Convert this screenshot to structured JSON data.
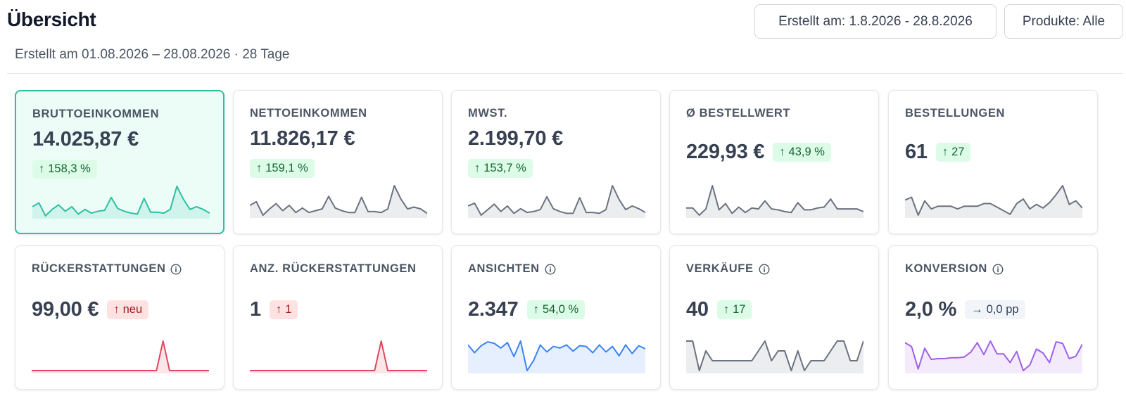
{
  "header": {
    "title": "Übersicht",
    "subtitle": "Erstellt am 01.08.2026 – 28.08.2026 · 28 Tage",
    "date_filter_label": "Erstellt am: 1.8.2026 - 28.8.2026",
    "products_filter_label": "Produkte: Alle"
  },
  "colors": {
    "teal": "#2dbfa3",
    "slate": "#6b7280",
    "red": "#e0485e",
    "blue": "#3b82f6",
    "purple": "#9f5fe8"
  },
  "cards": [
    {
      "label": "BRUTTOEINKOMMEN",
      "value": "14.025,87 €",
      "delta": "158,3 %",
      "delta_type": "up",
      "arrow": "↑",
      "info": false,
      "color": "teal",
      "selected": true,
      "series": [
        18,
        22,
        8,
        15,
        20,
        13,
        18,
        10,
        15,
        11,
        13,
        14,
        28,
        16,
        13,
        11,
        10,
        27,
        12,
        12,
        11,
        15,
        40,
        26,
        15,
        18,
        15,
        11
      ]
    },
    {
      "label": "NETTOEINKOMMEN",
      "value": "11.826,17 €",
      "delta": "159,1 %",
      "delta_type": "up",
      "arrow": "↑",
      "info": false,
      "color": "slate",
      "selected": false,
      "series": [
        18,
        22,
        7,
        14,
        20,
        12,
        18,
        10,
        15,
        10,
        12,
        14,
        28,
        15,
        12,
        10,
        10,
        27,
        11,
        11,
        10,
        14,
        40,
        25,
        14,
        16,
        14,
        9
      ]
    },
    {
      "label": "MWST.",
      "value": "2.199,70 €",
      "delta": "153,7 %",
      "delta_type": "up",
      "arrow": "↑",
      "info": false,
      "color": "slate",
      "selected": false,
      "series": [
        18,
        21,
        8,
        14,
        20,
        12,
        18,
        10,
        15,
        11,
        12,
        14,
        28,
        15,
        12,
        10,
        10,
        27,
        11,
        11,
        10,
        14,
        40,
        25,
        14,
        18,
        15,
        11
      ]
    },
    {
      "label": "Ø BESTELLWERT",
      "value": "229,93 €",
      "delta": "43,9 %",
      "delta_type": "up",
      "arrow": "↑",
      "info": false,
      "color": "slate",
      "selected": false,
      "series": [
        15,
        15,
        7,
        14,
        40,
        13,
        20,
        9,
        16,
        10,
        15,
        14,
        23,
        14,
        13,
        11,
        10,
        21,
        13,
        13,
        15,
        16,
        25,
        14,
        14,
        14,
        14,
        11
      ]
    },
    {
      "label": "BESTELLUNGEN",
      "value": "61",
      "delta": "27",
      "delta_type": "up",
      "arrow": "↑",
      "info": false,
      "color": "slate",
      "selected": false,
      "series": [
        25,
        28,
        8,
        24,
        15,
        18,
        18,
        18,
        15,
        18,
        18,
        18,
        21,
        21,
        17,
        13,
        9,
        21,
        26,
        15,
        20,
        16,
        22,
        31,
        41,
        20,
        24,
        16
      ]
    },
    {
      "label": "RÜCKERSTATTUNGEN",
      "value": "99,00 €",
      "delta": "neu",
      "delta_type": "new",
      "arrow": "↑",
      "info": true,
      "color": "red",
      "selected": false,
      "series": [
        0,
        0,
        0,
        0,
        0,
        0,
        0,
        0,
        0,
        0,
        0,
        0,
        0,
        0,
        0,
        0,
        0,
        0,
        0,
        0,
        1,
        0,
        0,
        0,
        0,
        0,
        0,
        0
      ]
    },
    {
      "label": "ANZ. RÜCKERSTATTUNGEN",
      "value": "1",
      "delta": "1",
      "delta_type": "new",
      "arrow": "↑",
      "info": false,
      "color": "red",
      "selected": false,
      "series": [
        0,
        0,
        0,
        0,
        0,
        0,
        0,
        0,
        0,
        0,
        0,
        0,
        0,
        0,
        0,
        0,
        0,
        0,
        0,
        0,
        1,
        0,
        0,
        0,
        0,
        0,
        0,
        0
      ]
    },
    {
      "label": "ANSICHTEN",
      "value": "2.347",
      "delta": "54,0 %",
      "delta_type": "up",
      "arrow": "↑",
      "info": true,
      "color": "blue",
      "selected": false,
      "series": [
        34,
        24,
        33,
        38,
        36,
        30,
        37,
        19,
        39,
        1,
        14,
        34,
        25,
        32,
        30,
        34,
        26,
        33,
        32,
        24,
        34,
        25,
        32,
        20,
        34,
        23,
        33,
        29
      ]
    },
    {
      "label": "VERKÄUFE",
      "value": "40",
      "delta": "17",
      "delta_type": "up",
      "arrow": "↑",
      "info": true,
      "color": "slate",
      "selected": false,
      "series": [
        4,
        4,
        1,
        3,
        2,
        2,
        2,
        2,
        2,
        2,
        2,
        3,
        4,
        2,
        3,
        3,
        1,
        3,
        1,
        2,
        2,
        2,
        3,
        4,
        4,
        2,
        2,
        4
      ]
    },
    {
      "label": "KONVERSION",
      "value": "2,0 %",
      "delta": "0,0 pp",
      "delta_type": "flat",
      "arrow": "→",
      "info": true,
      "color": "purple",
      "selected": false,
      "series": [
        35,
        30,
        2,
        28,
        14,
        15,
        15,
        16,
        16,
        17,
        23,
        35,
        20,
        37,
        21,
        21,
        10,
        24,
        0,
        7,
        27,
        22,
        10,
        36,
        34,
        15,
        18,
        33
      ]
    }
  ]
}
